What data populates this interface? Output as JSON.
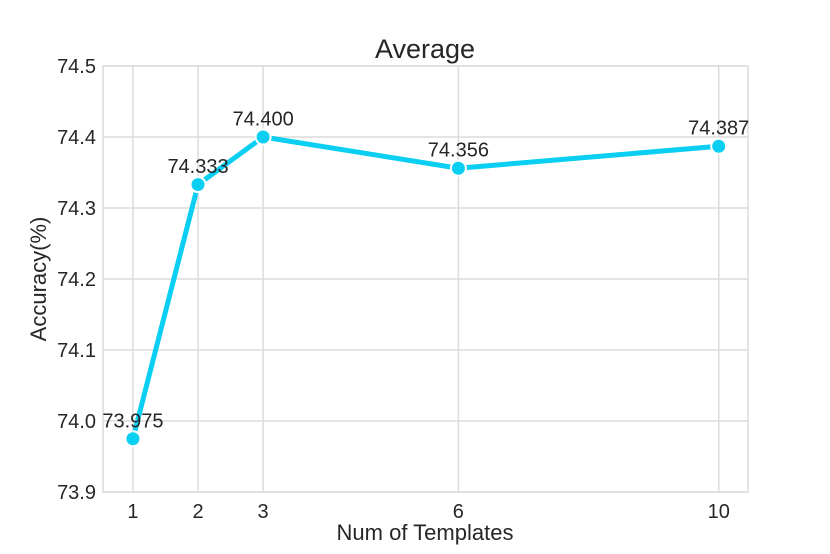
{
  "chart_data": {
    "type": "line",
    "title": "Average",
    "xlabel": "Num of Templates",
    "ylabel": "Accuracy(%)",
    "x": [
      1,
      2,
      3,
      6,
      10
    ],
    "values": [
      73.975,
      74.333,
      74.4,
      74.356,
      74.387
    ],
    "point_labels": [
      "73.975",
      "74.333",
      "74.400",
      "74.356",
      "74.387"
    ],
    "x_ticks": [
      1,
      2,
      3,
      6,
      10
    ],
    "x_tick_labels": [
      "1",
      "2",
      "3",
      "6",
      "10"
    ],
    "y_ticks": [
      73.9,
      74.0,
      74.1,
      74.2,
      74.3,
      74.4,
      74.5
    ],
    "y_tick_labels": [
      "73.9",
      "74.0",
      "74.1",
      "74.2",
      "74.3",
      "74.4",
      "74.5"
    ],
    "xlim": [
      0.54,
      10.45
    ],
    "ylim": [
      73.9,
      74.5
    ],
    "grid": true,
    "legend": "none",
    "colors": {
      "line": "#0ACFF2",
      "marker_fill": "#0ACFF2",
      "marker_edge": "#FFFFFF",
      "grid": "#DCDCDC",
      "border": "#DCDCDC",
      "text": "#262626",
      "background": "#FFFFFF"
    }
  }
}
